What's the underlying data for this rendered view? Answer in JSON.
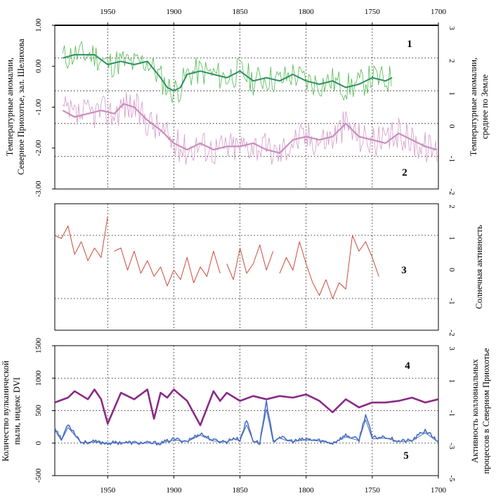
{
  "x_ticks": [
    "1950",
    "1900",
    "1850",
    "1800",
    "1750",
    "1700"
  ],
  "colors": {
    "green_thin": "#4fba4f",
    "green_smooth": "#2e8f62",
    "pink_thin": "#d49ac9",
    "pink_smooth": "#c98dbd",
    "red": "#cc4b3a",
    "purple": "#8a2a86",
    "blue": "#4a6fc0"
  },
  "chart_data": [
    {
      "type": "line",
      "panel": "top",
      "x_axis_reversed": true,
      "xlim": [
        1990,
        1700
      ],
      "left_ylabel": [
        "Температурные аномалии,",
        "Северное Приохотье, зал. Шелихова"
      ],
      "left_ticks": [
        "1.00",
        "0.00",
        "-1.00",
        "-2.00",
        "-3.00"
      ],
      "right_ylabel": [
        "Температурные аномалии,",
        "среднее по Земле"
      ],
      "right_ticks": [
        "3",
        "2",
        "1",
        "0",
        "-1",
        "-2"
      ],
      "series": [
        {
          "label": "1",
          "axis": "right",
          "ylim": [
            -2,
            3
          ],
          "x": [
            1984,
            1975,
            1960,
            1950,
            1940,
            1930,
            1920,
            1910,
            1905,
            1900,
            1895,
            1890,
            1880,
            1870,
            1860,
            1850,
            1840,
            1830,
            1820,
            1810,
            1800,
            1790,
            1780,
            1770,
            1760,
            1750,
            1740,
            1735
          ],
          "y": [
            2.0,
            2.1,
            2.1,
            1.8,
            1.9,
            1.8,
            1.9,
            1.4,
            1.1,
            1.0,
            1.1,
            1.5,
            1.6,
            1.5,
            1.4,
            1.6,
            1.3,
            1.4,
            1.3,
            1.5,
            1.3,
            1.2,
            1.3,
            1.1,
            1.2,
            1.4,
            1.3,
            1.4
          ]
        },
        {
          "label": "2",
          "axis": "right",
          "ylim": [
            -2,
            3
          ],
          "x": [
            1984,
            1975,
            1965,
            1955,
            1945,
            1938,
            1930,
            1920,
            1910,
            1900,
            1890,
            1880,
            1870,
            1860,
            1850,
            1840,
            1830,
            1820,
            1810,
            1800,
            1790,
            1780,
            1770,
            1760,
            1750,
            1740,
            1730,
            1720,
            1710,
            1701
          ],
          "y": [
            0.4,
            0.2,
            0.3,
            0.4,
            0.3,
            0.6,
            0.5,
            0.1,
            -0.2,
            -0.6,
            -0.8,
            -0.6,
            -0.8,
            -0.7,
            -0.7,
            -0.6,
            -0.8,
            -0.9,
            -0.5,
            -0.4,
            -0.5,
            -0.4,
            0.0,
            -0.4,
            -0.5,
            -0.6,
            -0.3,
            -0.5,
            -0.7,
            -0.8
          ]
        }
      ]
    },
    {
      "type": "line",
      "panel": "middle",
      "x_axis_reversed": true,
      "xlim": [
        1990,
        1700
      ],
      "ylim": [
        -2,
        2
      ],
      "right_ylabel": [
        "Солнечная активность"
      ],
      "right_ticks": [
        "2",
        "1",
        "0",
        "-1",
        "-2"
      ],
      "series": [
        {
          "label": "3",
          "x": [
            1990,
            1985,
            1980,
            1975,
            1970,
            1965,
            1960,
            1955,
            1950,
            1945,
            1940,
            1935,
            1930,
            1925,
            1920,
            1915,
            1910,
            1905,
            1900,
            1895,
            1890,
            1885,
            1880,
            1875,
            1870,
            1865,
            1860,
            1855,
            1850,
            1845,
            1840,
            1835,
            1830,
            1825,
            1820,
            1815,
            1810,
            1805,
            1800,
            1795,
            1790,
            1785,
            1780,
            1775,
            1770,
            1765,
            1760,
            1755,
            1750,
            1745
          ],
          "y": [
            1.0,
            0.9,
            1.3,
            0.4,
            0.8,
            0.2,
            0.6,
            0.3,
            1.6,
            0.5,
            0.6,
            -0.1,
            0.5,
            -0.2,
            0.2,
            -0.3,
            0.0,
            -0.6,
            -0.1,
            -0.4,
            0.3,
            -0.5,
            0.0,
            -0.3,
            0.5,
            -0.2,
            0.1,
            -0.4,
            0.6,
            -0.2,
            0.1,
            0.7,
            -0.1,
            0.5,
            -0.2,
            0.3,
            -0.1,
            0.8,
            0.1,
            -0.5,
            -0.9,
            -0.4,
            -1.0,
            -0.5,
            -0.7,
            1.0,
            0.5,
            0.8,
            0.3,
            -0.3
          ]
        }
      ]
    },
    {
      "type": "line",
      "panel": "bottom",
      "x_axis_reversed": true,
      "xlim": [
        1990,
        1700
      ],
      "left_ylabel": [
        "Количество вулканической",
        "пыли, индекс DVI"
      ],
      "left_ticks": [
        "1500",
        "1000",
        "500",
        "0",
        "-500"
      ],
      "right_ylabel": [
        "Активность колловиальных",
        "процессов в Северном Приохотье"
      ],
      "right_ticks": [
        "3",
        "1",
        "-1",
        "-3",
        "-5"
      ],
      "series": [
        {
          "label": "4",
          "axis": "right",
          "ylim": [
            -5,
            3
          ],
          "x": [
            1990,
            1980,
            1975,
            1965,
            1960,
            1955,
            1950,
            1940,
            1930,
            1920,
            1915,
            1910,
            1905,
            1900,
            1890,
            1880,
            1870,
            1865,
            1860,
            1850,
            1840,
            1830,
            1820,
            1810,
            1800,
            1790,
            1780,
            1770,
            1760,
            1750,
            1740,
            1730,
            1720,
            1710,
            1700
          ],
          "y": [
            -0.5,
            -0.2,
            0.2,
            -0.3,
            0.3,
            -0.3,
            -1.8,
            0.1,
            -0.3,
            0.3,
            -1.5,
            0.1,
            -0.2,
            0.3,
            -0.4,
            -1.9,
            0.2,
            -0.4,
            0.1,
            -0.4,
            -0.1,
            -0.3,
            -0.1,
            -0.2,
            0.0,
            -0.4,
            -1.1,
            -0.3,
            -0.8,
            -0.5,
            -0.5,
            -0.4,
            -0.2,
            -0.5,
            -0.3
          ]
        },
        {
          "label": "5",
          "axis": "left",
          "ylim": [
            -500,
            1500
          ],
          "x": [
            1990,
            1985,
            1980,
            1970,
            1960,
            1950,
            1940,
            1920,
            1910,
            1900,
            1890,
            1880,
            1870,
            1860,
            1855,
            1850,
            1845,
            1840,
            1835,
            1830,
            1825,
            1820,
            1815,
            1810,
            1800,
            1790,
            1780,
            1770,
            1760,
            1755,
            1750,
            1740,
            1730,
            1720,
            1710,
            1700
          ],
          "y": [
            250,
            50,
            300,
            10,
            20,
            0,
            10,
            0,
            0,
            60,
            30,
            150,
            40,
            20,
            80,
            50,
            350,
            40,
            0,
            650,
            30,
            100,
            50,
            30,
            60,
            40,
            0,
            120,
            50,
            450,
            80,
            100,
            30,
            40,
            200,
            20
          ]
        }
      ]
    }
  ]
}
